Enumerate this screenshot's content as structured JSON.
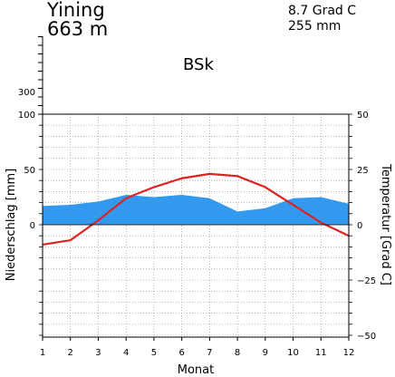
{
  "header": {
    "station": "Yining",
    "elevation": "663 m",
    "mean_temperature": "8.7 Grad C",
    "annual_precipitation": "255 mm",
    "climate_class": "BSk"
  },
  "chart_data": {
    "type": "line",
    "x_label": "Monat",
    "y_left_label": "Niederschlag [mm]",
    "y_right_label": "Temperatur [Grad C]",
    "categories": [
      1,
      2,
      3,
      4,
      5,
      6,
      7,
      8,
      9,
      10,
      11,
      12
    ],
    "left_ticks": [
      0,
      50,
      100
    ],
    "left_upper_ticks": [
      300
    ],
    "right_ticks": [
      50,
      25,
      0,
      -25,
      -50
    ],
    "right_tick_labels": [
      "50",
      "25",
      "0",
      "−25",
      "−50"
    ],
    "ylim_left": [
      -100,
      100
    ],
    "ylim_right": [
      -50,
      50
    ],
    "grid": true,
    "series": [
      {
        "kind": "precipitation-area",
        "color": "#3399ee",
        "values": [
          17,
          18,
          21,
          27,
          25,
          27,
          24,
          12,
          15,
          24,
          25,
          19
        ]
      },
      {
        "kind": "temperature-line",
        "color": "#dd2222",
        "values": [
          -9,
          -7,
          2,
          12,
          17,
          21,
          23,
          22,
          17,
          9,
          1,
          -5
        ]
      }
    ]
  }
}
